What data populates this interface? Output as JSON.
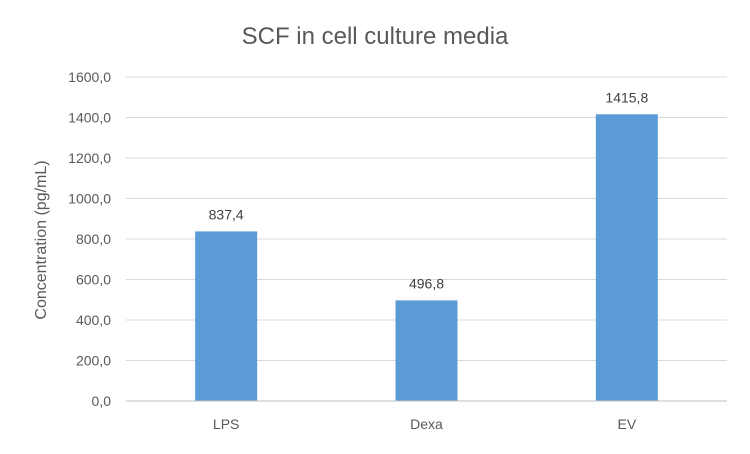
{
  "chart_data": {
    "type": "bar",
    "title": "SCF in cell culture media",
    "xlabel": "",
    "ylabel": "Concentration (pg/mL)",
    "categories": [
      "LPS",
      "Dexa",
      "EV"
    ],
    "values": [
      837.4,
      496.8,
      1415.8
    ],
    "value_labels": [
      "837,4",
      "496,8",
      "1415,8"
    ],
    "ylim": [
      0,
      1600
    ],
    "yticks": [
      0,
      200,
      400,
      600,
      800,
      1000,
      1200,
      1400,
      1600
    ],
    "ytick_labels": [
      "0,0",
      "200,0",
      "400,0",
      "600,0",
      "800,0",
      "1000,0",
      "1200,0",
      "1400,0",
      "1600,0"
    ],
    "grid": true,
    "legend": "none",
    "bar_color": "#5b9bd5"
  }
}
